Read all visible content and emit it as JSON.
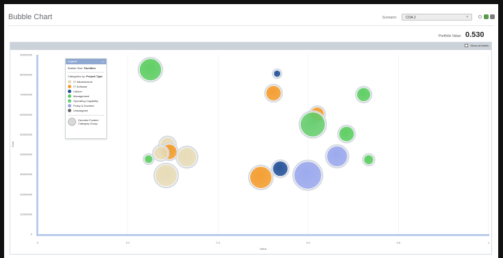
{
  "header": {
    "title": "Bubble Chart",
    "scenario_label": "Scenario:",
    "scenario_value": "COA 2",
    "portfolio_label": "Portfolio Value:",
    "portfolio_value": "0.530",
    "show_labels": "Show all labels"
  },
  "colors": {
    "it_infrastructure": "#e6dab4",
    "it_software": "#f39a29",
    "liaison": "#1f4e96",
    "management": "#58cc5d",
    "operating_capability": "#63cc6b",
    "policy_doctrine": "#97a5ec",
    "unassigned": "#666666"
  },
  "legend": {
    "title": "Legend",
    "bubble_size_prefix": "Bubble Size:",
    "bubble_size_value": "Facilities",
    "categories_prefix": "Categories by:",
    "categories_value": "Project Type",
    "items": [
      {
        "label": "IT Infrastructure",
        "color": "#e6dab4"
      },
      {
        "label": "IT Software",
        "color": "#f39a29"
      },
      {
        "label": "Liaison",
        "color": "#1f4e96"
      },
      {
        "label": "Management",
        "color": "#58cc5d"
      },
      {
        "label": "Operating Capability",
        "color": "#63cc6b"
      },
      {
        "label": "Policy & Doctrine",
        "color": "#97a5ec"
      },
      {
        "label": "Unassigned",
        "color": "#666666"
      }
    ],
    "group_note": "Denotes Funded Category Group"
  },
  "chart_data": {
    "type": "scatter",
    "xlabel": "Value",
    "ylabel": "Cost",
    "xlim": [
      0,
      1
    ],
    "ylim": [
      0,
      90000000
    ],
    "xticks": [
      "0",
      "0.2",
      "0.4",
      "0.6",
      "0.8",
      "1"
    ],
    "yticks": [
      "0",
      "10000000",
      "20000000",
      "30000000",
      "40000000",
      "50000000",
      "60000000",
      "70000000",
      "80000000",
      "90000000"
    ],
    "points": [
      {
        "x": 0.25,
        "y": 82500000,
        "size": 16,
        "category": "Management",
        "color": "#58cc5d"
      },
      {
        "x": 0.531,
        "y": 80500000,
        "size": 5,
        "category": "Liaison",
        "color": "#1f4e96"
      },
      {
        "x": 0.523,
        "y": 70700000,
        "size": 11,
        "category": "IT Software",
        "color": "#f39a29"
      },
      {
        "x": 0.723,
        "y": 70000000,
        "size": 10,
        "category": "Management",
        "color": "#58cc5d"
      },
      {
        "x": 0.62,
        "y": 60200000,
        "size": 10,
        "category": "IT Software",
        "color": "#f39a29"
      },
      {
        "x": 0.61,
        "y": 55000000,
        "size": 18,
        "category": "Operating Capability",
        "color": "#63cc6b"
      },
      {
        "x": 0.685,
        "y": 50200000,
        "size": 11,
        "category": "Management",
        "color": "#58cc5d"
      },
      {
        "x": 0.288,
        "y": 44700000,
        "size": 11,
        "category": "IT Infrastructure",
        "color": "#e6dab4"
      },
      {
        "x": 0.292,
        "y": 41300000,
        "size": 11,
        "category": "IT Software",
        "color": "#f39a29"
      },
      {
        "x": 0.273,
        "y": 40600000,
        "size": 10,
        "category": "IT Infrastructure",
        "color": "#e6dab4"
      },
      {
        "x": 0.246,
        "y": 37600000,
        "size": 6,
        "category": "Management",
        "color": "#58cc5d"
      },
      {
        "x": 0.331,
        "y": 38600000,
        "size": 14,
        "category": "IT Infrastructure",
        "color": "#e6dab4"
      },
      {
        "x": 0.664,
        "y": 39000000,
        "size": 15,
        "category": "Policy & Doctrine",
        "color": "#97a5ec"
      },
      {
        "x": 0.734,
        "y": 37300000,
        "size": 7,
        "category": "Management",
        "color": "#58cc5d"
      },
      {
        "x": 0.538,
        "y": 32800000,
        "size": 11,
        "category": "Liaison",
        "color": "#1f4e96"
      },
      {
        "x": 0.285,
        "y": 29400000,
        "size": 16,
        "category": "IT Infrastructure",
        "color": "#e6dab4"
      },
      {
        "x": 0.495,
        "y": 28400000,
        "size": 16,
        "category": "IT Software",
        "color": "#f39a29"
      },
      {
        "x": 0.599,
        "y": 29500000,
        "size": 20,
        "category": "Policy & Doctrine",
        "color": "#97a5ec"
      }
    ]
  }
}
